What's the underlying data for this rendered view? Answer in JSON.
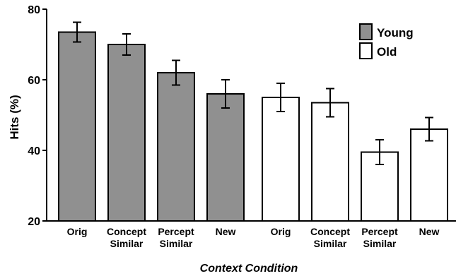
{
  "chart_data": {
    "type": "bar",
    "title": "",
    "xlabel": "Context Condition",
    "ylabel": "Hits (%)",
    "ylim": [
      20,
      80
    ],
    "yticks": [
      20,
      40,
      60,
      80
    ],
    "grid": false,
    "legend_position": "top-right",
    "categories": [
      [
        "Orig"
      ],
      [
        "Concept",
        "Similar"
      ],
      [
        "Percept",
        "Similar"
      ],
      [
        "New"
      ]
    ],
    "series": [
      {
        "name": "Young",
        "color": "#909090",
        "values": [
          73.5,
          70,
          62,
          56
        ],
        "errors": [
          2.8,
          3.0,
          3.5,
          4.0
        ]
      },
      {
        "name": "Old",
        "color": "#ffffff",
        "values": [
          55,
          53.5,
          39.5,
          46
        ],
        "errors": [
          4.0,
          4.0,
          3.5,
          3.3
        ]
      }
    ]
  }
}
